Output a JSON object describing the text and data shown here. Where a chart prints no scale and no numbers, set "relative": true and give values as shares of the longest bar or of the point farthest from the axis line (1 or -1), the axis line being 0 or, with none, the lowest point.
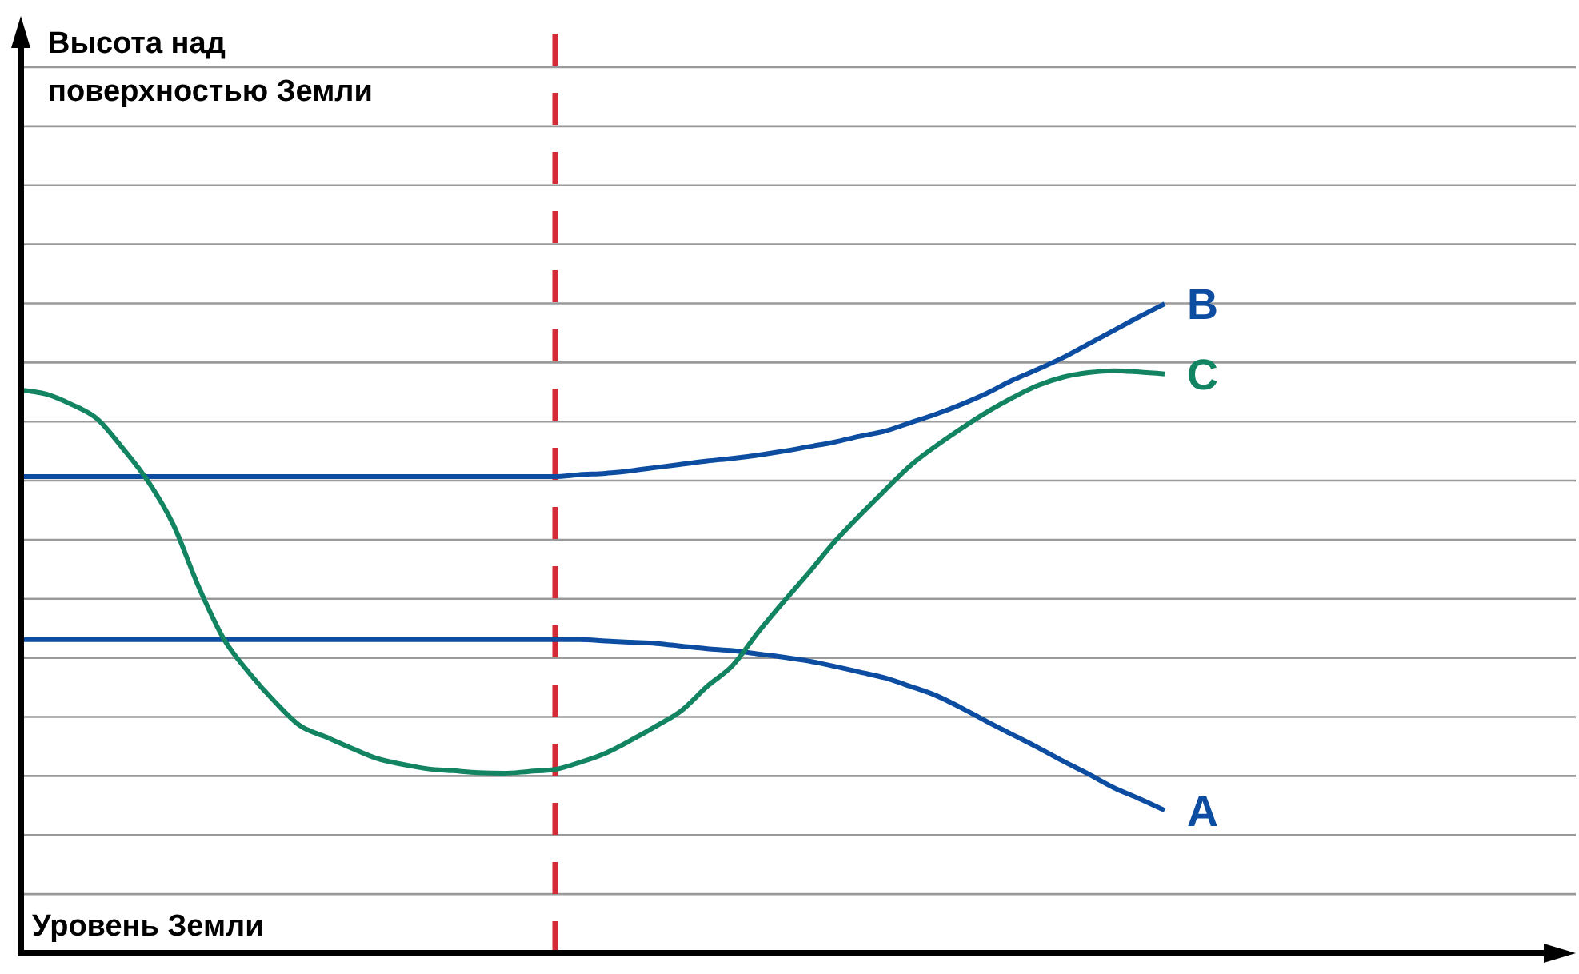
{
  "chart_data": {
    "type": "line",
    "relative": true,
    "xlabel": "Уровень Земли",
    "annotations": [
      "Высота над поверхностью Земли"
    ],
    "categories": [
      null,
      null,
      null,
      null,
      null,
      null,
      null,
      null,
      null,
      null,
      null,
      null,
      null,
      null,
      null,
      null,
      null,
      null,
      null,
      null,
      null,
      null,
      null,
      null,
      null,
      null,
      null,
      null,
      null,
      null,
      null,
      null,
      null,
      null,
      null,
      null,
      null,
      null,
      null,
      null,
      null,
      null,
      null,
      null,
      null,
      null
    ],
    "series": [
      {
        "name": "A",
        "color": "#0c4da2",
        "values": [
          0.483,
          0.483,
          0.483,
          0.483,
          0.483,
          0.483,
          0.483,
          0.483,
          0.483,
          0.483,
          0.483,
          0.483,
          0.483,
          0.483,
          0.483,
          0.483,
          0.483,
          0.483,
          0.483,
          0.483,
          0.483,
          0.483,
          0.483,
          0.481,
          0.479,
          0.477,
          0.473,
          0.469,
          0.466,
          0.461,
          0.456,
          0.45,
          0.442,
          0.433,
          0.424,
          0.411,
          0.397,
          0.378,
          0.357,
          0.337,
          0.317,
          0.296,
          0.276,
          0.255,
          0.238,
          0.22
        ]
      },
      {
        "name": "B",
        "color": "#0c4da2",
        "values": [
          0.734,
          0.734,
          0.734,
          0.734,
          0.734,
          0.734,
          0.734,
          0.734,
          0.734,
          0.734,
          0.734,
          0.734,
          0.734,
          0.734,
          0.734,
          0.734,
          0.734,
          0.734,
          0.734,
          0.734,
          0.734,
          0.734,
          0.737,
          0.739,
          0.743,
          0.748,
          0.753,
          0.758,
          0.762,
          0.767,
          0.773,
          0.78,
          0.787,
          0.796,
          0.804,
          0.817,
          0.83,
          0.845,
          0.862,
          0.882,
          0.899,
          0.917,
          0.938,
          0.959,
          0.98,
          1
        ]
      },
      {
        "name": "C",
        "color": "#138462",
        "values": [
          0.867,
          0.861,
          0.845,
          0.823,
          0.778,
          0.727,
          0.66,
          0.564,
          0.483,
          0.431,
          0.387,
          0.35,
          0.333,
          0.316,
          0.3,
          0.291,
          0.284,
          0.281,
          0.278,
          0.277,
          0.28,
          0.283,
          0.294,
          0.308,
          0.328,
          0.35,
          0.374,
          0.411,
          0.443,
          0.494,
          0.541,
          0.586,
          0.633,
          0.674,
          0.713,
          0.751,
          0.781,
          0.808,
          0.833,
          0.855,
          0.874,
          0.887,
          0.894,
          0.897,
          0.895,
          0.892
        ]
      }
    ],
    "grid": "y"
  }
}
